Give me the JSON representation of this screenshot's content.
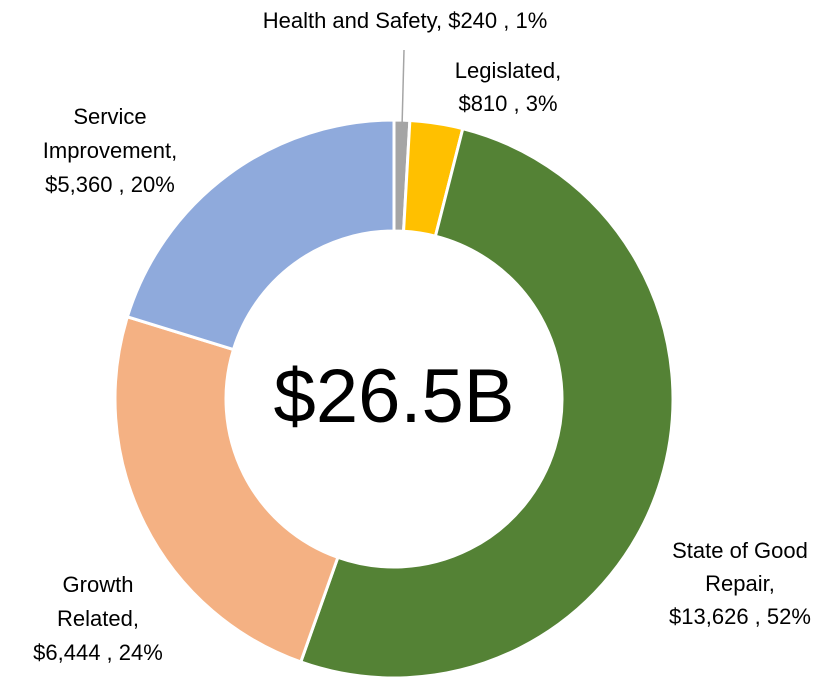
{
  "chart_data": {
    "type": "donut",
    "center_label": "$26.5B",
    "categories": [
      "Health and Safety",
      "Legislated",
      "State of Good Repair",
      "Growth Related",
      "Service Improvement"
    ],
    "values": [
      240,
      810,
      13626,
      6444,
      5360
    ],
    "labels": [
      [
        "Health and Safety, $240 , 1%"
      ],
      [
        "Legislated,",
        "$810 , 3%"
      ],
      [
        "State of Good",
        "Repair,",
        "$13,626 , 52%"
      ],
      [
        "Growth",
        "Related,",
        "$6,444 , 24%"
      ],
      [
        "Service",
        "Improvement,",
        "$5,360 , 20%"
      ]
    ],
    "colors": [
      "#a5a5a5",
      "#ffc000",
      "#548235",
      "#f4b183",
      "#8faadc"
    ]
  }
}
